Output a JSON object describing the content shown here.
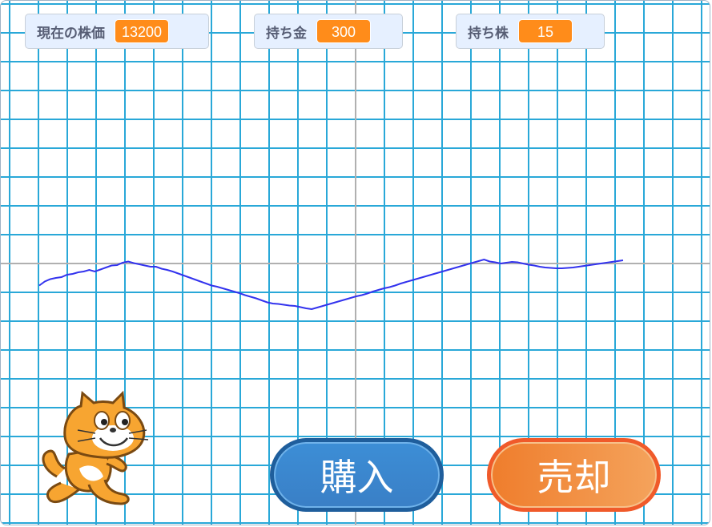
{
  "monitors": [
    {
      "label": "現在の株価",
      "value": "13200"
    },
    {
      "label": "持ち金",
      "value": "300"
    },
    {
      "label": "持ち株",
      "value": "15"
    }
  ],
  "buttons": {
    "buy_label": "購入",
    "sell_label": "売却"
  },
  "price_history": [
    -0.55,
    -0.45,
    -0.39,
    -0.36,
    -0.34,
    -0.28,
    -0.26,
    -0.22,
    -0.2,
    -0.16,
    -0.2,
    -0.15,
    -0.1,
    -0.05,
    -0.04,
    0.02,
    0.05,
    0.01,
    -0.02,
    -0.05,
    -0.08,
    -0.08,
    -0.13,
    -0.16,
    -0.2,
    -0.25,
    -0.3,
    -0.35,
    -0.4,
    -0.45,
    -0.5,
    -0.55,
    -0.58,
    -0.62,
    -0.66,
    -0.7,
    -0.74,
    -0.79,
    -0.83,
    -0.87,
    -0.92,
    -0.97,
    -1.0,
    -1.01,
    -1.03,
    -1.05,
    -1.06,
    -1.09,
    -1.12,
    -1.14,
    -1.1,
    -1.06,
    -1.02,
    -0.98,
    -0.94,
    -0.9,
    -0.86,
    -0.82,
    -0.79,
    -0.75,
    -0.7,
    -0.66,
    -0.62,
    -0.59,
    -0.55,
    -0.5,
    -0.46,
    -0.42,
    -0.38,
    -0.34,
    -0.3,
    -0.26,
    -0.22,
    -0.18,
    -0.14,
    -0.1,
    -0.06,
    -0.02,
    0.02,
    0.06,
    0.1,
    0.05,
    0.03,
    0.0,
    0.02,
    0.04,
    0.03,
    0.0,
    -0.03,
    -0.05,
    -0.08,
    -0.1,
    -0.11,
    -0.12,
    -0.12,
    -0.11,
    -0.1,
    -0.08,
    -0.06,
    -0.04,
    -0.02,
    0.0,
    0.02,
    0.04,
    0.06,
    0.08
  ],
  "colors": {
    "grid": "#29a8d8",
    "axis": "#b0b0b0",
    "line": "#3333ee",
    "monitor_value_bg": "#ff8c1a"
  },
  "sprite": "scratch-cat"
}
